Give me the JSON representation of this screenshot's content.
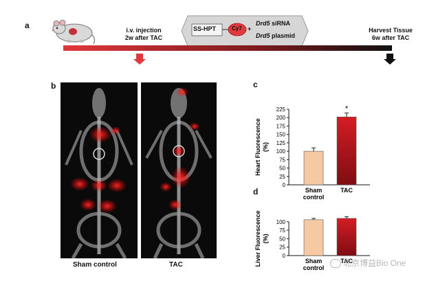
{
  "panel_a": {
    "letter": "a",
    "injection_line1": "i.v. injection",
    "injection_line2": "2w after TAC",
    "probe": "SS-HPT",
    "dye": "Cy7",
    "plus": "+",
    "sirna_gene": "Drd5",
    "sirna_text": "siRNA",
    "plasmid_gene": "Drd5",
    "plasmid_text": "plasmid",
    "harvest_line1": "Harvest Tissue",
    "harvest_line2": "6w after TAC"
  },
  "panel_b": {
    "letter": "b",
    "left_caption": "Sham control",
    "right_caption": "TAC"
  },
  "colors": {
    "sham_bar": "#f6c9a3",
    "tac_bar": "#c0121b",
    "timeline_start": "#e0383c",
    "timeline_end": "#111111"
  },
  "chart_data": [
    {
      "panel": "c",
      "type": "bar",
      "ylabel": "Heart Fluorescence (%)",
      "categories": [
        "Sham control",
        "TAC"
      ],
      "category_lines": [
        [
          "Sham",
          "control"
        ],
        [
          "TAC"
        ]
      ],
      "values": [
        100,
        202
      ],
      "errors": [
        10,
        12
      ],
      "annotation": "*",
      "ylim": [
        0,
        225
      ],
      "yticks": [
        0,
        25,
        50,
        75,
        100,
        125,
        150,
        175,
        200,
        225
      ]
    },
    {
      "panel": "d",
      "type": "bar",
      "ylabel": "Liver Fluorescence (%)",
      "categories": [
        "Sham control",
        "TAC"
      ],
      "category_lines": [
        [
          "Sham",
          "control"
        ],
        [
          "TAC"
        ]
      ],
      "values": [
        106,
        110
      ],
      "errors": [
        4,
        5
      ],
      "ylim": [
        0,
        130
      ],
      "yticks": [
        0,
        25,
        50,
        75,
        100
      ]
    }
  ],
  "watermark": "北京博益Bio One"
}
